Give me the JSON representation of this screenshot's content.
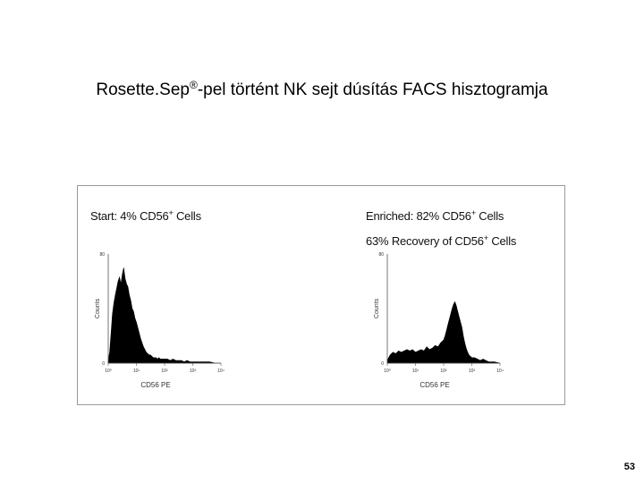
{
  "slide": {
    "title_before": "Rosette.Sep",
    "title_sup": "®",
    "title_after": "-pel történt NK sejt dúsítás FACS hisztogramja",
    "page_number": "53"
  },
  "panels": {
    "left": {
      "heading_pre": "Start: 4% CD56",
      "heading_sup": "+",
      "heading_post": " Cells"
    },
    "right": {
      "line1_pre": "Enriched: 82% CD56",
      "line1_sup": "+",
      "line1_post": " Cells",
      "line2_pre": "63% Recovery of CD56",
      "line2_sup": "+",
      "line2_post": " Cells"
    }
  },
  "chart_data": [
    {
      "type": "area",
      "title": "Start: 4% CD56+ Cells",
      "xlabel": "CD56 PE",
      "ylabel": "Counts",
      "xscale": "log",
      "xlim": [
        1,
        10000
      ],
      "ylim": [
        0,
        80
      ],
      "xticks": [
        "10⁰",
        "10¹",
        "10²",
        "10³",
        "10⁴"
      ],
      "yticks": [
        "0",
        "80"
      ],
      "fill_color": "#000000",
      "series": [
        {
          "x": [
            1,
            1.12,
            1.26,
            1.41,
            1.58,
            1.78,
            2.0,
            2.24,
            2.51,
            2.82,
            3.16,
            3.55,
            3.98,
            4.47,
            5.01,
            5.62,
            6.31,
            7.08,
            7.94,
            8.91,
            10,
            11.2,
            12.6,
            14.1,
            15.8,
            17.8,
            20,
            22.4,
            25.1,
            28.2,
            31.6,
            35.5,
            39.8,
            44.7,
            50.1,
            56.2,
            63.1,
            70.8,
            79.4,
            89.1,
            100,
            126,
            158,
            200,
            251,
            316,
            398,
            501,
            631,
            794,
            1000,
            1585,
            2512,
            3981,
            6310,
            10000
          ],
          "y": [
            2,
            8,
            22,
            36,
            44,
            50,
            55,
            60,
            63,
            58,
            65,
            70,
            62,
            58,
            56,
            50,
            46,
            40,
            38,
            33,
            30,
            26,
            22,
            18,
            15,
            12,
            10,
            8,
            7,
            6,
            6,
            5,
            4,
            4,
            4,
            3,
            4,
            3,
            3,
            3,
            3,
            3,
            2,
            3,
            2,
            2,
            2,
            1,
            2,
            1,
            1,
            1,
            1,
            1,
            0,
            0
          ]
        }
      ]
    },
    {
      "type": "area",
      "title": "Enriched: 82% CD56+ Cells; 63% Recovery of CD56+ Cells",
      "xlabel": "CD56 PE",
      "ylabel": "Counts",
      "xscale": "log",
      "xlim": [
        1,
        10000
      ],
      "ylim": [
        0,
        80
      ],
      "xticks": [
        "10⁰",
        "10¹",
        "10²",
        "10³",
        "10⁴"
      ],
      "yticks": [
        "0",
        "80"
      ],
      "fill_color": "#000000",
      "series": [
        {
          "x": [
            1,
            1.26,
            1.58,
            2.0,
            2.51,
            3.16,
            3.98,
            5.01,
            6.31,
            7.94,
            10,
            12.6,
            15.8,
            20,
            25.1,
            31.6,
            39.8,
            50.1,
            63.1,
            79.4,
            100,
            112,
            126,
            141,
            158,
            178,
            200,
            224,
            251,
            282,
            316,
            355,
            398,
            447,
            501,
            562,
            631,
            708,
            794,
            891,
            1000,
            1259,
            1585,
            1995,
            2512,
            3162,
            3981,
            6310,
            10000
          ],
          "y": [
            2,
            6,
            8,
            7,
            9,
            8,
            9,
            10,
            9,
            10,
            8,
            9,
            10,
            9,
            12,
            10,
            11,
            13,
            12,
            15,
            17,
            20,
            24,
            28,
            32,
            36,
            40,
            43,
            45,
            42,
            38,
            34,
            30,
            26,
            20,
            15,
            11,
            8,
            6,
            5,
            4,
            4,
            3,
            2,
            3,
            2,
            1,
            1,
            0
          ]
        }
      ]
    }
  ]
}
